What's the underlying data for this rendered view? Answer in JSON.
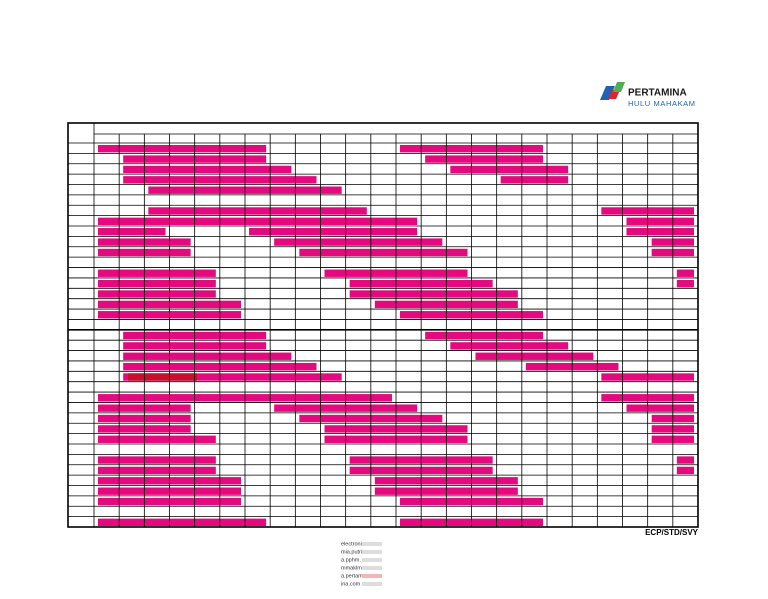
{
  "logo": {
    "name": "PERTAMINA",
    "subtitle": "HULU MAHAKAM"
  },
  "footer": {
    "code": "ECP/STD/SVY",
    "contact": [
      "electronic",
      "mia.putri",
      "a.pphm.",
      "mmaklm",
      "a.pertam",
      "ina.com"
    ]
  }
}
